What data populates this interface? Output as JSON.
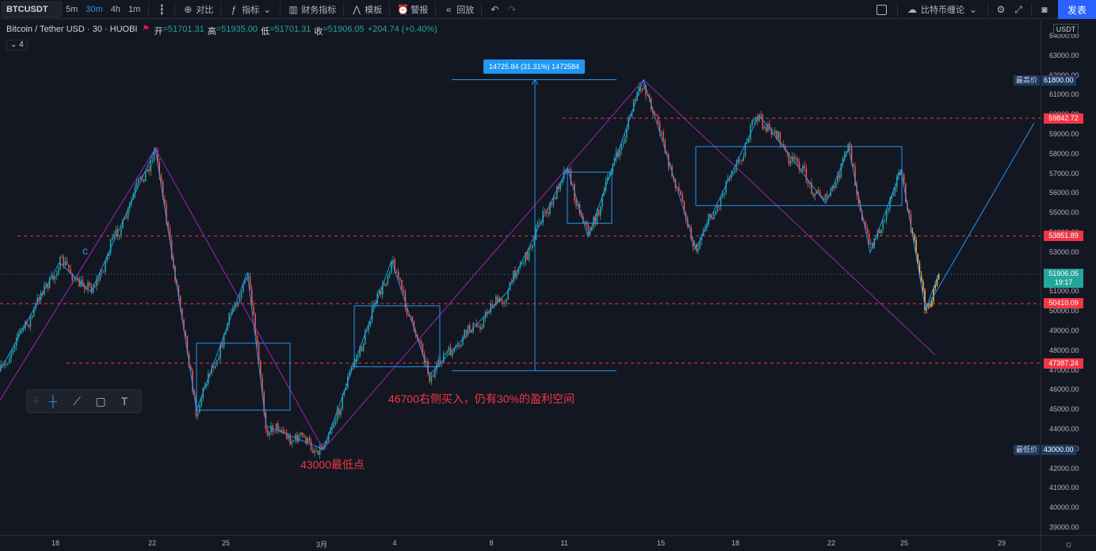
{
  "toolbar": {
    "symbol": "BTCUSDT",
    "intervals": [
      "5m",
      "30m",
      "4h",
      "1m"
    ],
    "active_interval": "30m",
    "compare": "对比",
    "indicators": "指标",
    "financials": "财务指标",
    "templates": "模板",
    "alert": "警报",
    "replay": "回放",
    "cloud": "比特币缠论",
    "publish": "发表"
  },
  "legend": {
    "title": "Bitcoin / Tether USD · 30 · HUOBI",
    "open_label": "开",
    "open": "=51701.31",
    "high_label": "高",
    "high": "=51935.00",
    "low_label": "低",
    "low": "=51701.31",
    "close_label": "收",
    "close": "=51906.05",
    "change": "+204.74 (+0.40%)",
    "indicator_count": "4"
  },
  "annotations": {
    "measure": "14725.84 (31.31%) 1472584",
    "low_note": "43000最低点",
    "buy_note": "46700右侧买入，仍有30%的盈利空间",
    "c_marker": "c"
  },
  "price_axis": {
    "currency": "USDT",
    "ticks": [
      "64000.00",
      "63000.00",
      "62000.00",
      "61000.00",
      "60000.00",
      "59000.00",
      "58000.00",
      "57000.00",
      "56000.00",
      "55000.00",
      "54000.00",
      "53000.00",
      "52000.00",
      "51000.00",
      "50000.00",
      "49000.00",
      "48000.00",
      "47000.00",
      "46000.00",
      "45000.00",
      "44000.00",
      "43000.00",
      "42000.00",
      "41000.00",
      "40000.00",
      "39000.00"
    ],
    "tags": {
      "high_label": "最高价",
      "high": "61800.00",
      "r1": "59842.72",
      "r2": "53851.89",
      "last": "51906.05",
      "countdown": "19:17",
      "s1": "50410.09",
      "s2": "47387.24",
      "low_label": "最低价",
      "low": "43000.00"
    }
  },
  "time_axis": {
    "ticks": [
      "18",
      "22",
      "25",
      "3月",
      "4",
      "8",
      "11",
      "15",
      "18",
      "22",
      "25",
      "29"
    ]
  },
  "colors": {
    "background": "#131722",
    "up": "#26a69a",
    "down": "#ef5350",
    "trend": "#2196f3",
    "channel": "#9c27b0",
    "level": "#f23645"
  },
  "chart_data": {
    "type": "candlestick",
    "symbol": "BTCUSDT",
    "interval": "30",
    "ylim": [
      38500,
      64500
    ],
    "key_levels": [
      59842.72,
      53851.89,
      50410.09,
      47387.24
    ],
    "period_high": 61800.0,
    "period_low": 43000.0,
    "last_price": 51906.05,
    "swing_points": [
      {
        "t": "16",
        "price": 47000
      },
      {
        "t": "18",
        "price": 52500
      },
      {
        "t": "19",
        "price": 51000
      },
      {
        "t": "22",
        "price": 58300
      },
      {
        "t": "23",
        "price": 45000
      },
      {
        "t": "25",
        "price": 52000
      },
      {
        "t": "26",
        "price": 44200
      },
      {
        "t": "3月",
        "price": 43000
      },
      {
        "t": "4",
        "price": 52600
      },
      {
        "t": "5",
        "price": 46800
      },
      {
        "t": "8",
        "price": 51000
      },
      {
        "t": "11",
        "price": 57300
      },
      {
        "t": "12",
        "price": 53800
      },
      {
        "t": "14",
        "price": 61800
      },
      {
        "t": "16",
        "price": 53200
      },
      {
        "t": "19",
        "price": 60000
      },
      {
        "t": "22",
        "price": 55500
      },
      {
        "t": "23",
        "price": 58300
      },
      {
        "t": "24",
        "price": 53000
      },
      {
        "t": "25",
        "price": 57200
      },
      {
        "t": "26",
        "price": 50100
      },
      {
        "t": "26",
        "price": 51906.05
      }
    ]
  }
}
